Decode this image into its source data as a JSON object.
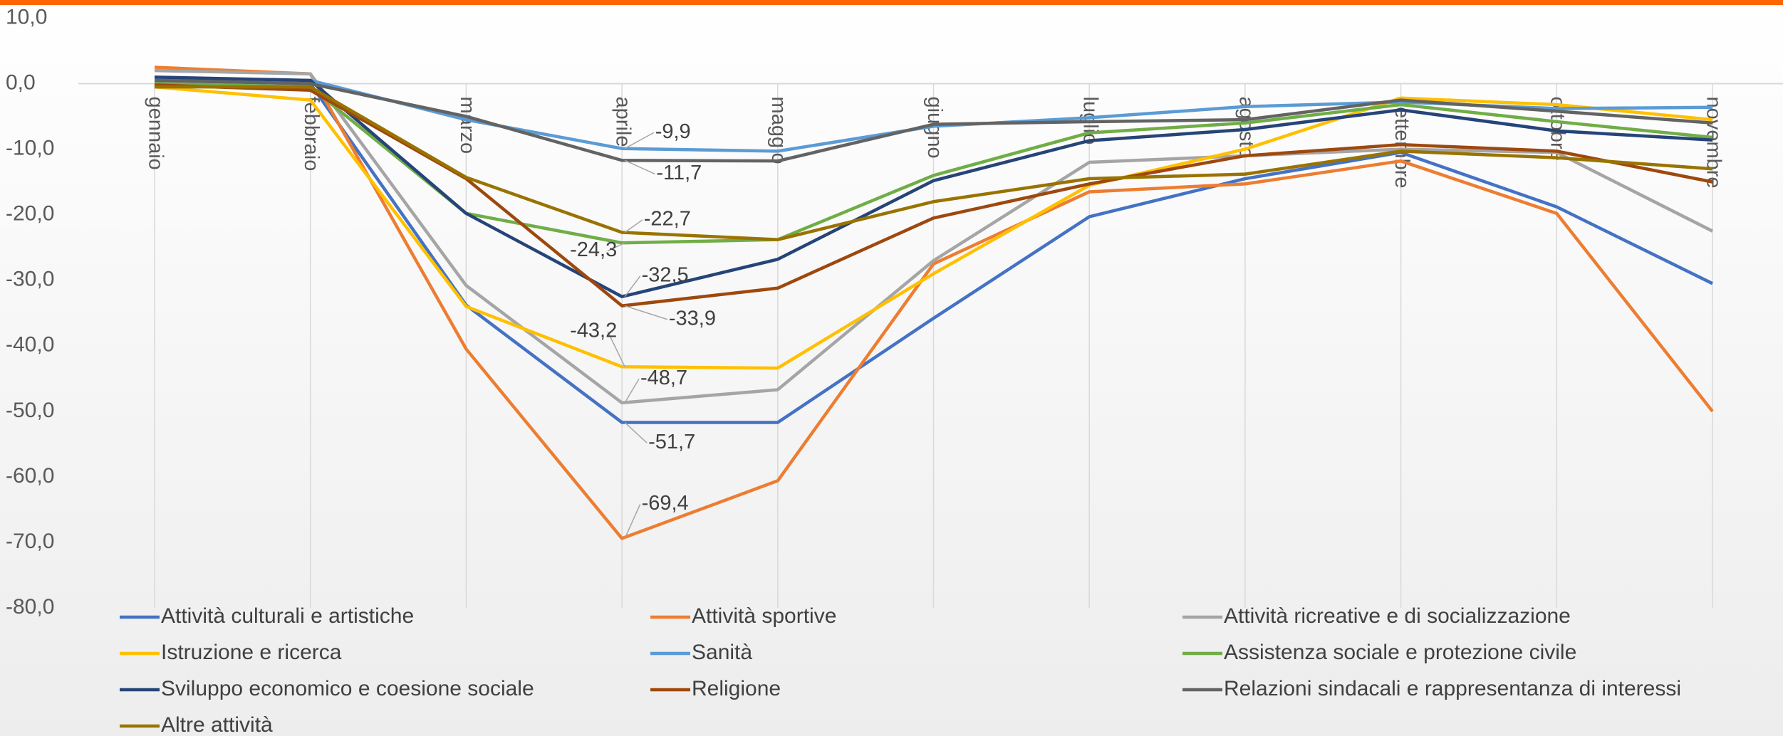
{
  "chart_data": {
    "type": "line",
    "categories": [
      "gennaio",
      "febbraio",
      "marzo",
      "aprile",
      "maggio",
      "giugno",
      "luglio",
      "agosto",
      "settembre",
      "ottobre",
      "novembre"
    ],
    "ylim": [
      -80,
      10
    ],
    "yticks": [
      {
        "value": 10,
        "label": "10,0"
      },
      {
        "value": 0,
        "label": "0,0"
      },
      {
        "value": -10,
        "label": "-10,0"
      },
      {
        "value": -20,
        "label": "-20,0"
      },
      {
        "value": -30,
        "label": "-30,0"
      },
      {
        "value": -40,
        "label": "-40,0"
      },
      {
        "value": -50,
        "label": "-50,0"
      },
      {
        "value": -60,
        "label": "-60,0"
      },
      {
        "value": -70,
        "label": "-70,0"
      },
      {
        "value": -80,
        "label": "-80,0"
      }
    ],
    "grid": "x",
    "legend": "bottom",
    "series": [
      {
        "name": "Attività culturali e artistiche",
        "color": "#4472c4",
        "values": [
          0.5,
          0,
          -33.8,
          -51.7,
          -51.7,
          -35.8,
          -20.3,
          -14.5,
          -10.5,
          -18.8,
          -30.5
        ],
        "value_labels": [
          null,
          null,
          null,
          "-51,7",
          null,
          null,
          null,
          null,
          null,
          null,
          null
        ]
      },
      {
        "name": "Attività sportive",
        "color": "#ed7d31",
        "values": [
          2.5,
          1.5,
          -40.5,
          -69.4,
          -60.6,
          -27.5,
          -16.5,
          -15.3,
          -11.8,
          -19.8,
          -50
        ],
        "value_labels": [
          null,
          null,
          null,
          "-69,4",
          null,
          null,
          null,
          null,
          null,
          null,
          null
        ]
      },
      {
        "name": "Attività ricreative e di socializzazione",
        "color": "#a5a5a5",
        "values": [
          2,
          1.5,
          -30.8,
          -48.7,
          -46.7,
          -27,
          -12,
          -11,
          -10,
          -10.5,
          -22.5
        ],
        "value_labels": [
          null,
          null,
          null,
          "-48,7",
          null,
          null,
          null,
          null,
          null,
          null,
          null
        ]
      },
      {
        "name": "Istruzione e ricerca",
        "color": "#ffc000",
        "values": [
          -0.5,
          -2.5,
          -34,
          -43.2,
          -43.4,
          -29,
          -15.5,
          -10,
          -2.2,
          -3.2,
          -5.5
        ],
        "value_labels": [
          null,
          null,
          null,
          "-43,2",
          null,
          null,
          null,
          null,
          null,
          null,
          null
        ]
      },
      {
        "name": "Sanità",
        "color": "#5b9bd5",
        "values": [
          0.5,
          0.5,
          -5.5,
          -9.9,
          -10.3,
          -6.5,
          -5.2,
          -3.5,
          -2.8,
          -3.8,
          -3.6
        ],
        "value_labels": [
          null,
          null,
          null,
          "-9,9",
          null,
          null,
          null,
          null,
          null,
          null,
          null
        ]
      },
      {
        "name": "Assistenza sociale e protezione civile",
        "color": "#70ad47",
        "values": [
          0,
          -0.5,
          -19.8,
          -24.3,
          -23.8,
          -14,
          -7.5,
          -6,
          -3.2,
          -5.8,
          -8.2
        ],
        "value_labels": [
          null,
          null,
          null,
          "-24,3",
          null,
          null,
          null,
          null,
          null,
          null,
          null
        ]
      },
      {
        "name": "Sviluppo economico e coesione sociale",
        "color": "#264478",
        "values": [
          1,
          0.5,
          -19.8,
          -32.5,
          -26.8,
          -14.8,
          -8.7,
          -7,
          -4,
          -7.2,
          -8.6
        ],
        "value_labels": [
          null,
          null,
          null,
          "-32,5",
          null,
          null,
          null,
          null,
          null,
          null,
          null
        ]
      },
      {
        "name": "Religione",
        "color": "#9e480e",
        "values": [
          -0.2,
          -1,
          -14.5,
          -33.9,
          -31.2,
          -20.5,
          -15.3,
          -11,
          -9.3,
          -10.3,
          -15
        ],
        "value_labels": [
          null,
          null,
          null,
          "-33,9",
          null,
          null,
          null,
          null,
          null,
          null,
          null
        ]
      },
      {
        "name": "Relazioni sindacali e rappresentanza di interessi",
        "color": "#636363",
        "values": [
          0.5,
          0,
          -5,
          -11.7,
          -11.8,
          -6.2,
          -5.8,
          -5.5,
          -2.5,
          -4.2,
          -6
        ],
        "value_labels": [
          null,
          null,
          null,
          "-11,7",
          null,
          null,
          null,
          null,
          null,
          null,
          null
        ]
      },
      {
        "name": "Altre attività",
        "color": "#997300",
        "values": [
          -0.5,
          -0.5,
          -14.3,
          -22.7,
          -23.8,
          -18,
          -14.5,
          -13.8,
          -10.3,
          -11.3,
          -13
        ],
        "value_labels": [
          null,
          null,
          null,
          "-22,7",
          null,
          null,
          null,
          null,
          null,
          null,
          null
        ]
      }
    ]
  }
}
